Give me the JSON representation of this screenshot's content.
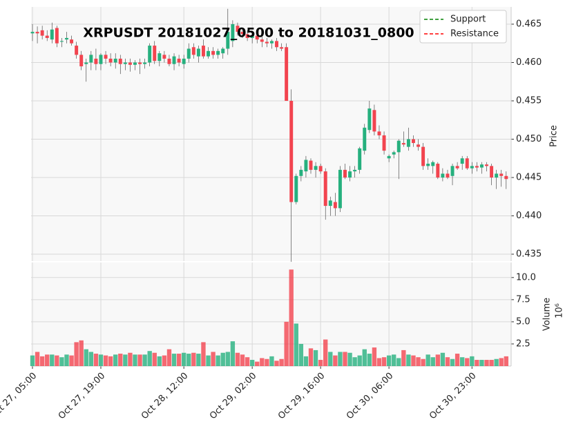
{
  "chart_data": {
    "type": "candlestick",
    "title": "XRPUSDT 20181027_0500 to 20181031_0800",
    "ylabel": "Price",
    "volume_label": "Volume",
    "volume_offset": "10⁶",
    "up_color": "#26b07e",
    "down_color": "#f2444f",
    "grid": true,
    "legend_loc": "upper right",
    "legend": [
      {
        "name": "Support",
        "color": "#008000",
        "style": "dashed"
      },
      {
        "name": "Resistance",
        "color": "#ff0000",
        "style": "dashed"
      }
    ],
    "categories": [
      "Oct 27, 05:00",
      null,
      null,
      null,
      null,
      null,
      null,
      null,
      null,
      null,
      null,
      null,
      null,
      null,
      "Oct 27, 19:00",
      null,
      null,
      null,
      null,
      null,
      null,
      null,
      null,
      null,
      null,
      null,
      null,
      null,
      null,
      null,
      null,
      "Oct 28, 12:00",
      null,
      null,
      null,
      null,
      null,
      null,
      null,
      null,
      null,
      null,
      null,
      null,
      null,
      "Oct 29, 02:00",
      null,
      null,
      null,
      null,
      null,
      null,
      null,
      null,
      null,
      null,
      null,
      null,
      null,
      "Oct 29, 16:00",
      null,
      null,
      null,
      null,
      null,
      null,
      null,
      null,
      null,
      null,
      null,
      null,
      null,
      "Oct 30, 06:00",
      null,
      null,
      null,
      null,
      null,
      null,
      null,
      null,
      null,
      null,
      null,
      null,
      null,
      null,
      null,
      null,
      "Oct 30, 23:00",
      null,
      null,
      null,
      null,
      null,
      null,
      null
    ],
    "open": [
      0.4638,
      0.464,
      0.4642,
      0.4635,
      0.463,
      0.4645,
      0.4627,
      0.463,
      0.463,
      0.4622,
      0.461,
      0.4598,
      0.46,
      0.4605,
      0.4598,
      0.461,
      0.4605,
      0.46,
      0.4605,
      0.4598,
      0.46,
      0.4597,
      0.46,
      0.4598,
      0.46,
      0.4622,
      0.4602,
      0.461,
      0.4605,
      0.4598,
      0.4605,
      0.4598,
      0.4605,
      0.462,
      0.4608,
      0.4622,
      0.4608,
      0.4615,
      0.461,
      0.4612,
      0.4618,
      0.4628,
      0.4648,
      0.464,
      0.4637,
      0.4632,
      0.4635,
      0.463,
      0.4627,
      0.4625,
      0.4628,
      0.462,
      0.462,
      0.455,
      0.4418,
      0.4452,
      0.4458,
      0.4472,
      0.446,
      0.4465,
      0.4458,
      0.4413,
      0.4418,
      0.441,
      0.446,
      0.445,
      0.4458,
      0.446,
      0.4485,
      0.4512,
      0.4538,
      0.451,
      0.4505,
      0.4475,
      0.448,
      0.4483,
      0.4495,
      0.449,
      0.45,
      0.4493,
      0.449,
      0.4465,
      0.4465,
      0.4468,
      0.445,
      0.4455,
      0.4452,
      0.4465,
      0.4468,
      0.4475,
      0.4462,
      0.4465,
      0.4463,
      0.4467,
      0.4465,
      0.445,
      0.4455,
      0.4452
    ],
    "high": [
      0.465,
      0.4647,
      0.4648,
      0.4642,
      0.4652,
      0.4648,
      0.4632,
      0.464,
      0.4635,
      0.4627,
      0.4615,
      0.4605,
      0.4615,
      0.4618,
      0.4612,
      0.4615,
      0.4612,
      0.4612,
      0.461,
      0.4605,
      0.4605,
      0.4603,
      0.4605,
      0.4605,
      0.4625,
      0.4628,
      0.4615,
      0.4615,
      0.461,
      0.4612,
      0.461,
      0.461,
      0.4625,
      0.4625,
      0.4622,
      0.463,
      0.462,
      0.462,
      0.4618,
      0.462,
      0.467,
      0.4655,
      0.4652,
      0.4645,
      0.4642,
      0.464,
      0.464,
      0.4635,
      0.4632,
      0.463,
      0.4632,
      0.4625,
      0.4625,
      0.4565,
      0.4455,
      0.4465,
      0.4478,
      0.4475,
      0.447,
      0.4468,
      0.4462,
      0.4425,
      0.443,
      0.4465,
      0.4468,
      0.4465,
      0.4465,
      0.449,
      0.452,
      0.455,
      0.4545,
      0.4518,
      0.451,
      0.448,
      0.4485,
      0.45,
      0.451,
      0.4515,
      0.4505,
      0.45,
      0.4495,
      0.4475,
      0.4472,
      0.447,
      0.4462,
      0.446,
      0.4468,
      0.447,
      0.4478,
      0.4478,
      0.447,
      0.447,
      0.447,
      0.447,
      0.4468,
      0.446,
      0.446,
      0.4458
    ],
    "low": [
      0.4628,
      0.4625,
      0.463,
      0.4628,
      0.4625,
      0.462,
      0.462,
      0.4625,
      0.4622,
      0.4605,
      0.459,
      0.4575,
      0.459,
      0.459,
      0.459,
      0.4598,
      0.4595,
      0.4592,
      0.4585,
      0.459,
      0.4588,
      0.459,
      0.4585,
      0.4592,
      0.4595,
      0.4598,
      0.4595,
      0.46,
      0.4595,
      0.459,
      0.4595,
      0.4592,
      0.46,
      0.4605,
      0.46,
      0.4605,
      0.4605,
      0.4605,
      0.4605,
      0.4605,
      0.461,
      0.462,
      0.4635,
      0.4632,
      0.4628,
      0.4625,
      0.4625,
      0.462,
      0.462,
      0.4618,
      0.4615,
      0.4615,
      0.455,
      0.434,
      0.4415,
      0.4445,
      0.445,
      0.4455,
      0.445,
      0.4455,
      0.4395,
      0.44,
      0.44,
      0.4405,
      0.4448,
      0.4445,
      0.445,
      0.4455,
      0.448,
      0.4508,
      0.4505,
      0.45,
      0.448,
      0.447,
      0.4475,
      0.4448,
      0.449,
      0.4485,
      0.449,
      0.4485,
      0.446,
      0.446,
      0.4455,
      0.4448,
      0.4445,
      0.4448,
      0.444,
      0.446,
      0.446,
      0.446,
      0.4455,
      0.4458,
      0.4455,
      0.4458,
      0.444,
      0.4435,
      0.4438,
      0.4435
    ],
    "close": [
      0.464,
      0.4638,
      0.4635,
      0.4632,
      0.4643,
      0.4625,
      0.4628,
      0.4632,
      0.4625,
      0.461,
      0.4595,
      0.46,
      0.461,
      0.4598,
      0.461,
      0.4605,
      0.46,
      0.4605,
      0.4598,
      0.46,
      0.4597,
      0.46,
      0.4598,
      0.46,
      0.4622,
      0.4602,
      0.4612,
      0.4605,
      0.4598,
      0.4608,
      0.46,
      0.4605,
      0.4618,
      0.461,
      0.4618,
      0.4608,
      0.4615,
      0.461,
      0.4615,
      0.4618,
      0.464,
      0.465,
      0.464,
      0.4637,
      0.4632,
      0.4635,
      0.463,
      0.4627,
      0.4625,
      0.4628,
      0.462,
      0.4618,
      0.455,
      0.4418,
      0.4452,
      0.446,
      0.4473,
      0.446,
      0.4465,
      0.4458,
      0.4413,
      0.442,
      0.441,
      0.446,
      0.445,
      0.4458,
      0.446,
      0.4488,
      0.4515,
      0.454,
      0.451,
      0.4505,
      0.4485,
      0.4478,
      0.4483,
      0.4498,
      0.4493,
      0.45,
      0.4495,
      0.449,
      0.4465,
      0.4468,
      0.447,
      0.445,
      0.4455,
      0.445,
      0.4465,
      0.4462,
      0.4475,
      0.4462,
      0.4465,
      0.4463,
      0.4467,
      0.4465,
      0.445,
      0.4455,
      0.4452,
      0.4448
    ],
    "volume": [
      1.2,
      1.6,
      1.1,
      1.3,
      1.3,
      1.2,
      1.0,
      1.3,
      1.2,
      2.7,
      2.9,
      1.9,
      1.6,
      1.4,
      1.3,
      1.2,
      1.1,
      1.3,
      1.4,
      1.3,
      1.5,
      1.3,
      1.3,
      1.3,
      1.7,
      1.5,
      1.1,
      1.2,
      1.9,
      1.4,
      1.4,
      1.5,
      1.4,
      1.5,
      1.4,
      2.7,
      1.2,
      1.6,
      1.2,
      1.5,
      1.6,
      2.8,
      1.5,
      1.3,
      1.0,
      0.7,
      0.5,
      0.9,
      0.8,
      1.1,
      0.6,
      0.8,
      5.0,
      10.9,
      4.8,
      2.5,
      1.1,
      2.0,
      1.8,
      0.7,
      3.0,
      1.6,
      1.2,
      1.6,
      1.6,
      1.5,
      1.0,
      1.2,
      1.9,
      1.4,
      2.1,
      0.9,
      1.0,
      1.2,
      1.3,
      0.9,
      1.8,
      1.3,
      1.2,
      1.0,
      0.8,
      1.3,
      1.0,
      1.3,
      1.5,
      1.0,
      0.8,
      1.4,
      1.0,
      0.9,
      1.1,
      0.7,
      0.7,
      0.7,
      0.7,
      0.8,
      0.9,
      1.1
    ],
    "ylim": [
      0.4341,
      0.46725
    ],
    "yticks": [
      0.435,
      {
        "value": 0.44,
        "label": "0.440"
      },
      0.445,
      {
        "value": 0.45,
        "label": "0.450"
      },
      0.455,
      {
        "value": 0.46,
        "label": "0.460"
      },
      0.465
    ],
    "volume_ylim": [
      0,
      11.7
    ],
    "volume_yticks": [
      2.5,
      {
        "value": 5,
        "label": "5.0"
      },
      7.5,
      {
        "value": 10,
        "label": "10.0"
      }
    ]
  }
}
